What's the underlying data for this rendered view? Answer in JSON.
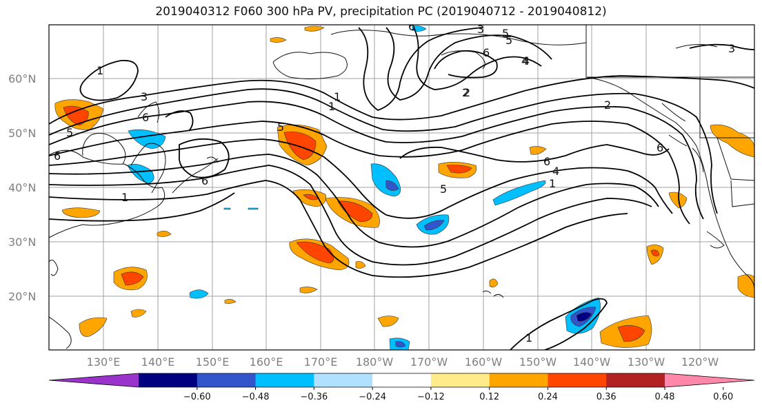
{
  "title": "2019040312 F060 300 hPa PV, precipitation PC (2019040712 - 2019040812)",
  "lat_labels": [
    "60°N",
    "50°N",
    "40°N",
    "30°N",
    "20°N"
  ],
  "lon_labels": [
    "130°E",
    "140°E",
    "150°E",
    "160°E",
    "170°E",
    "180°W",
    "170°W",
    "160°W",
    "150°W",
    "140°W",
    "130°W",
    "120°W"
  ],
  "colorbar": {
    "ticks": [
      "−0.60",
      "−0.48",
      "−0.36",
      "−0.24",
      "−0.12",
      "0.12",
      "0.24",
      "0.36",
      "0.48",
      "0.60"
    ],
    "colors": [
      "#9933cc",
      "#000080",
      "#3355cc",
      "#00bfff",
      "#b0e2ff",
      "#ffffff",
      "#ffeb8a",
      "#ffa500",
      "#ff4500",
      "#b22222",
      "#ff88aa"
    ]
  },
  "contour_labels": [
    "1",
    "2",
    "3",
    "4",
    "5",
    "6",
    "1",
    "5",
    "6",
    "5",
    "6",
    "1",
    "2",
    "6",
    "4",
    "3",
    "3",
    "5",
    "6",
    "5",
    "4",
    "1",
    "2",
    "6",
    "1",
    "6",
    "1"
  ],
  "shading_colors": {
    "pos_light": "#ffeb8a",
    "pos_mid": "#ffa500",
    "pos_strong": "#ff4500",
    "neg_light": "#b0e2ff",
    "neg_mid": "#00bfff",
    "neg_strong": "#3355cc",
    "neg_max": "#000080"
  }
}
